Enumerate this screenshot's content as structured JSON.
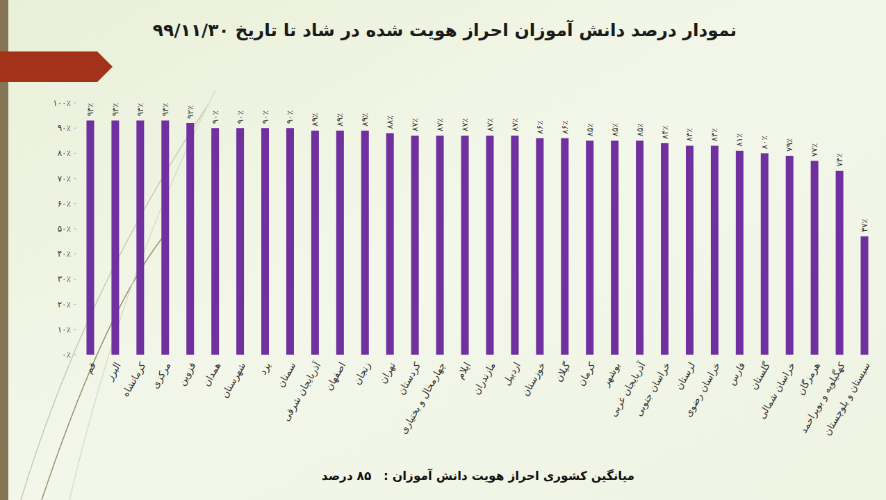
{
  "chart_data": {
    "type": "bar",
    "title": "نمودار درصد دانش آموزان احراز هویت شده در شاد تا تاریخ ۹۹/۱۱/۳۰",
    "annotations": [
      "میانگین کشوری احراز هویت دانش آموزان :   ۸۵ درصد"
    ],
    "categories": [
      "قم",
      "البرز",
      "کرمانشاه",
      "مرکزی",
      "قزوین",
      "همدان",
      "شهرستان",
      "یزد",
      "سمنان",
      "آذربایجان شرقی",
      "اصفهان",
      "زنجان",
      "تهران",
      "کردستان",
      "چهارمحال و بختیاری",
      "ایلام",
      "مازندران",
      "اردبیل",
      "خوزستان",
      "گیلان",
      "کرمان",
      "بوشهر",
      "آذربایجان غربی",
      "خراسان جنوبی",
      "لرستان",
      "خراسان رضوی",
      "فارس",
      "گلستان",
      "خراسان شمالی",
      "هرمزگان",
      "کهگیلویه و بویراحمد",
      "سیستان و بلوچستان"
    ],
    "values": [
      93,
      93,
      93,
      93,
      92,
      90,
      90,
      90,
      90,
      89,
      89,
      89,
      88,
      87,
      87,
      87,
      87,
      87,
      86,
      86,
      85,
      85,
      85,
      84,
      83,
      83,
      81,
      80,
      79,
      77,
      73,
      47
    ],
    "value_labels": [
      "۹۳٪",
      "۹۳٪",
      "۹۳٪",
      "۹۳٪",
      "۹۲٪",
      "۹۰٪",
      "۹۰٪",
      "۹۰٪",
      "۹۰٪",
      "۸۹٪",
      "۸۹٪",
      "۸۹٪",
      "۸۸٪",
      "۸۷٪",
      "۸۷٪",
      "۸۷٪",
      "۸۷٪",
      "۸۷٪",
      "۸۶٪",
      "۸۶٪",
      "۸۵٪",
      "۸۵٪",
      "۸۵٪",
      "۸۴٪",
      "۸۳٪",
      "۸۳٪",
      "۸۱٪",
      "۸۰٪",
      "۷۹٪",
      "۷۷٪",
      "۷۳٪",
      "۴۷٪"
    ],
    "color": "#7030a0",
    "ylim": [
      0,
      100
    ],
    "yticks": [
      {
        "value": 0,
        "label": "۰٪"
      },
      {
        "value": 10,
        "label": "۱۰٪"
      },
      {
        "value": 20,
        "label": "۲۰٪"
      },
      {
        "value": 30,
        "label": "۳۰٪"
      },
      {
        "value": 40,
        "label": "۴۰٪"
      },
      {
        "value": 50,
        "label": "۵۰٪"
      },
      {
        "value": 60,
        "label": "۶۰٪"
      },
      {
        "value": 70,
        "label": "۷۰٪"
      },
      {
        "value": 80,
        "label": "۸۰٪"
      },
      {
        "value": 90,
        "label": "۹۰٪"
      },
      {
        "value": 100,
        "label": "۱۰۰٪"
      }
    ],
    "grid": false,
    "data_labels": true
  }
}
